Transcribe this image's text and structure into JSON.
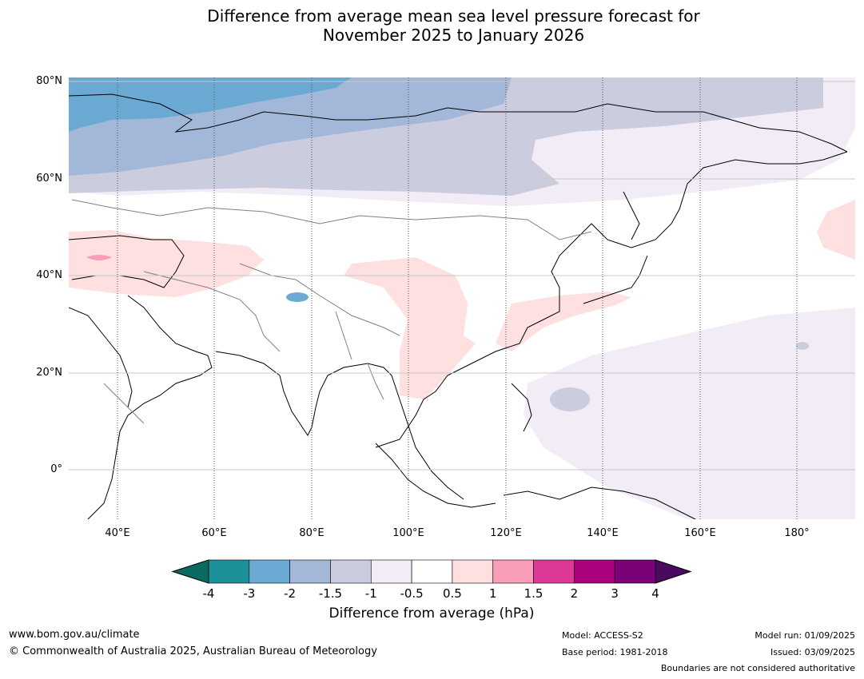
{
  "title": {
    "line1": "Difference from average mean sea level pressure forecast for",
    "line2": "November 2025 to January 2026"
  },
  "map": {
    "lat_labels": [
      "80°N",
      "60°N",
      "40°N",
      "20°N",
      "0°"
    ],
    "lon_labels": [
      "40°E",
      "60°E",
      "80°E",
      "100°E",
      "120°E",
      "140°E",
      "160°E",
      "180°"
    ],
    "extent": {
      "lon_min": 30,
      "lon_max": 192,
      "lat_min": -10,
      "lat_max": 81
    }
  },
  "colorbar": {
    "title": "Difference from average (hPa)",
    "tick_labels": [
      "-4",
      "-3",
      "-2",
      "-1.5",
      "-1",
      "-0.5",
      "0.5",
      "1",
      "1.5",
      "2",
      "3",
      "4"
    ],
    "under_color": "#0a6b60",
    "over_color": "#4a0a5e",
    "colors": [
      "#1b9099",
      "#6aaad2",
      "#a3b8d9",
      "#ccccdf",
      "#f1ecf5",
      "#ffffff",
      "#fde0df",
      "#f89eb8",
      "#dd3896",
      "#ac017d",
      "#7a0177"
    ]
  },
  "footer": {
    "url": "www.bom.gov.au/climate",
    "copyright": "© Commonwealth of Australia 2025, Australian Bureau of Meteorology",
    "model": "Model: ACCESS-S2",
    "base_period": "Base period: 1981-2018",
    "model_run": "Model run: 01/09/2025",
    "issued": "Issued: 03/09/2025",
    "disclaimer": "Boundaries are not considered authoritative"
  }
}
